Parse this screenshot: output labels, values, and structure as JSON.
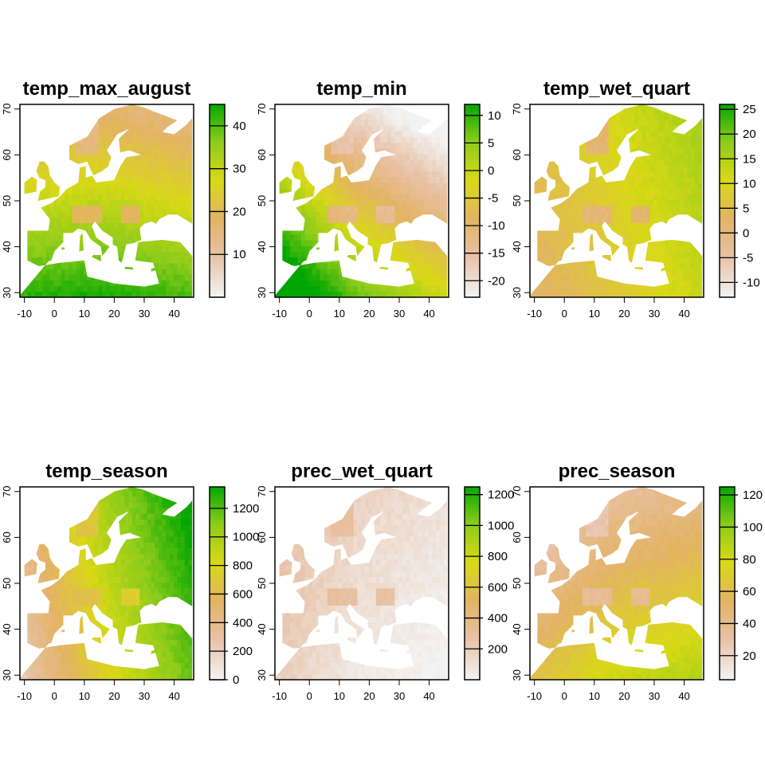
{
  "chart_data": [
    {
      "type": "heatmap",
      "title": "temp_max_august",
      "xlim": [
        -10,
        45
      ],
      "ylim": [
        30,
        70
      ],
      "x_ticks": [
        -10,
        0,
        10,
        20,
        30,
        40
      ],
      "y_ticks": [
        30,
        40,
        50,
        60,
        70
      ],
      "legend_range": [
        0,
        45
      ],
      "legend_ticks": [
        10,
        20,
        30,
        40
      ],
      "color_ramp": [
        "#f2f2f2",
        "#e8c2a8",
        "#e3b364",
        "#d9d916",
        "#8dcc1a",
        "#00a600"
      ],
      "field": {
        "south": 44,
        "north": 16,
        "east": 9,
        "west": 17,
        "mountain": 10
      }
    },
    {
      "type": "heatmap",
      "title": "temp_min",
      "xlim": [
        -10,
        45
      ],
      "ylim": [
        30,
        70
      ],
      "x_ticks": [
        -10,
        0,
        10,
        20,
        30,
        40
      ],
      "y_ticks": [
        30,
        40,
        50,
        60,
        70
      ],
      "legend_range": [
        -23,
        12
      ],
      "legend_ticks": [
        -20,
        -15,
        -10,
        -5,
        0,
        5,
        10
      ],
      "color_ramp": [
        "#f2f2f2",
        "#e8c2a8",
        "#e3b364",
        "#d9d916",
        "#8dcc1a",
        "#00a600"
      ],
      "field": {
        "south": 8,
        "north": -20,
        "east": -12,
        "west": 6,
        "mountain": -18
      }
    },
    {
      "type": "heatmap",
      "title": "temp_wet_quart",
      "xlim": [
        -10,
        45
      ],
      "ylim": [
        30,
        70
      ],
      "x_ticks": [
        -10,
        0,
        10,
        20,
        30,
        40
      ],
      "y_ticks": [
        30,
        40,
        50,
        60,
        70
      ],
      "legend_range": [
        -13,
        26
      ],
      "legend_ticks": [
        -10,
        -5,
        0,
        5,
        10,
        15,
        20,
        25
      ],
      "color_ramp": [
        "#f2f2f2",
        "#e8c2a8",
        "#e3b364",
        "#d9d916",
        "#8dcc1a",
        "#00a600"
      ],
      "field": {
        "south": 6,
        "north": 10,
        "east": 20,
        "west": 8,
        "mountain": -4
      }
    },
    {
      "type": "heatmap",
      "title": "temp_season",
      "xlim": [
        -10,
        45
      ],
      "ylim": [
        30,
        70
      ],
      "x_ticks": [
        -10,
        0,
        10,
        20,
        30,
        40
      ],
      "y_ticks": [
        30,
        40,
        50,
        60,
        70
      ],
      "legend_range": [
        0,
        1350
      ],
      "legend_ticks": [
        0,
        200,
        400,
        600,
        800,
        1000,
        1200
      ],
      "color_ramp": [
        "#f2f2f2",
        "#e8c2a8",
        "#e3b364",
        "#d9d916",
        "#8dcc1a",
        "#00a600"
      ],
      "field": {
        "south": 700,
        "north": 950,
        "east": 1250,
        "west": 380,
        "mountain": 550
      }
    },
    {
      "type": "heatmap",
      "title": "prec_wet_quart",
      "xlim": [
        -10,
        45
      ],
      "ylim": [
        30,
        70
      ],
      "x_ticks": [
        -10,
        0,
        10,
        20,
        30,
        40
      ],
      "y_ticks": [
        30,
        40,
        50,
        60,
        70
      ],
      "legend_range": [
        0,
        1250
      ],
      "legend_ticks": [
        200,
        400,
        600,
        800,
        1000,
        1200
      ],
      "color_ramp": [
        "#f2f2f2",
        "#e8c2a8",
        "#e3b364",
        "#d9d916",
        "#8dcc1a",
        "#00a600"
      ],
      "field": {
        "south": 60,
        "north": 180,
        "east": 160,
        "west": 320,
        "mountain": 380
      }
    },
    {
      "type": "heatmap",
      "title": "prec_season",
      "xlim": [
        -10,
        45
      ],
      "ylim": [
        30,
        70
      ],
      "x_ticks": [
        -10,
        0,
        10,
        20,
        30,
        40
      ],
      "y_ticks": [
        30,
        40,
        50,
        60,
        70
      ],
      "legend_range": [
        5,
        125
      ],
      "legend_ticks": [
        20,
        40,
        60,
        80,
        100,
        120
      ],
      "color_ramp": [
        "#f2f2f2",
        "#e8c2a8",
        "#e3b364",
        "#d9d916",
        "#8dcc1a",
        "#00a600"
      ],
      "field": {
        "south": 80,
        "north": 30,
        "east": 35,
        "west": 18,
        "mountain": 20
      }
    }
  ]
}
